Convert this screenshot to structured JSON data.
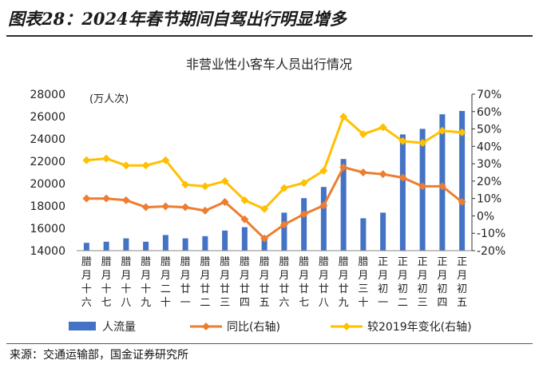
{
  "figure": {
    "title": "图表28：2024年春节期间自驾出行明显增多",
    "source": "来源：交通运输部，国金证券研究所"
  },
  "chart_data": {
    "type": "bar",
    "title": "非营业性小客车人员出行情况",
    "y_left_unit": "(万人次)",
    "y_left_range": [
      14000,
      28000
    ],
    "y_left_ticks": [
      "14000",
      "16000",
      "18000",
      "20000",
      "22000",
      "24000",
      "26000",
      "28000"
    ],
    "y_right_range": [
      -20,
      70
    ],
    "y_right_ticks": [
      "-20%",
      "-10%",
      "0%",
      "10%",
      "20%",
      "30%",
      "40%",
      "50%",
      "60%",
      "70%"
    ],
    "categories": [
      "腊月十六",
      "腊月十七",
      "腊月十八",
      "腊月十九",
      "腊月二十",
      "腊月廿一",
      "腊月廿二",
      "腊月廿三",
      "腊月廿四",
      "腊月廿五",
      "腊月廿六",
      "腊月廿七",
      "腊月廿八",
      "腊月廿九",
      "腊月三十",
      "正月初一",
      "正月初二",
      "正月初三",
      "正月初四",
      "正月初五"
    ],
    "legend_position": "bottom",
    "series": [
      {
        "name": "人流量",
        "type": "bar",
        "axis": "left",
        "color": "#4472C4",
        "values": [
          14700,
          14800,
          15100,
          14800,
          15400,
          15100,
          15300,
          15800,
          16100,
          15000,
          17400,
          18700,
          19700,
          22200,
          16900,
          17400,
          24400,
          24900,
          26200,
          26500
        ]
      },
      {
        "name": "同比(右轴)",
        "type": "line",
        "axis": "right",
        "color": "#ED7D31",
        "marker": "diamond",
        "values": [
          10,
          10,
          9,
          5,
          5.5,
          5,
          3,
          8,
          -2,
          -13,
          -5,
          1,
          6,
          28,
          25,
          24,
          22,
          17,
          17,
          8
        ]
      },
      {
        "name": "较2019年变化(右轴)",
        "type": "line",
        "axis": "right",
        "color": "#FFC000",
        "marker": "diamond",
        "values": [
          32,
          33,
          29,
          29,
          32,
          18,
          17,
          20,
          9,
          4,
          16,
          19,
          26,
          57,
          47,
          51,
          43,
          42,
          49,
          48
        ]
      }
    ]
  }
}
